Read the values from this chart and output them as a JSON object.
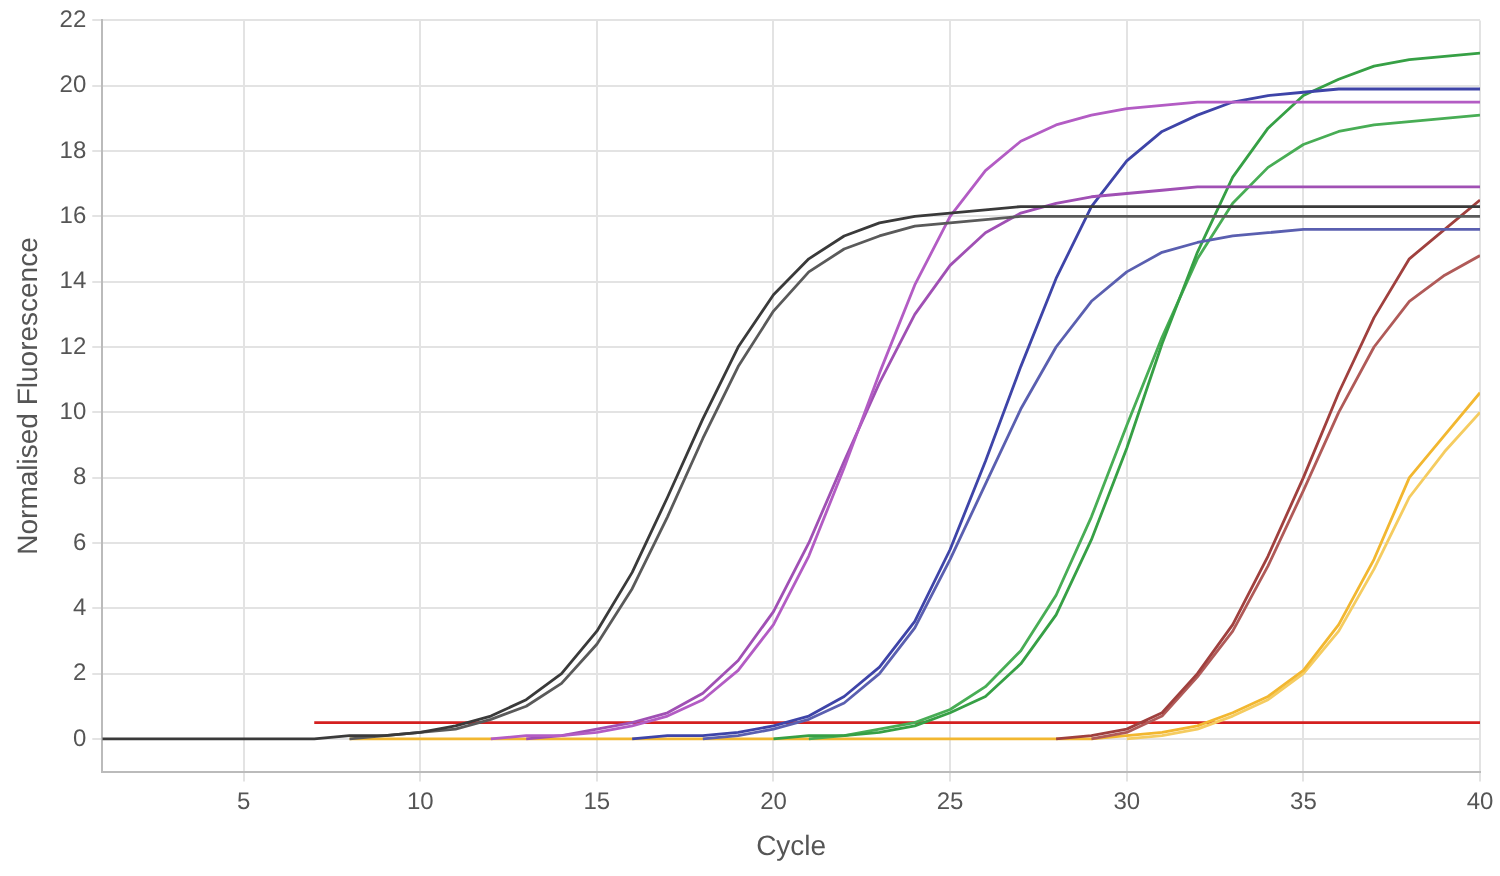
{
  "chart_data": {
    "type": "line",
    "xlabel": "Cycle",
    "ylabel": "Normalised Fluorescence",
    "x": [
      1,
      2,
      3,
      4,
      5,
      6,
      7,
      8,
      9,
      10,
      11,
      12,
      13,
      14,
      15,
      16,
      17,
      18,
      19,
      20,
      21,
      22,
      23,
      24,
      25,
      26,
      27,
      28,
      29,
      30,
      31,
      32,
      33,
      34,
      35,
      36,
      37,
      38,
      39,
      40
    ],
    "xlim": [
      1,
      40
    ],
    "xticks": [
      5,
      10,
      15,
      20,
      25,
      30,
      35,
      40
    ],
    "ylim": [
      -1,
      22
    ],
    "yticks": [
      0,
      2,
      4,
      6,
      8,
      10,
      12,
      14,
      16,
      18,
      20,
      22
    ],
    "grid": true,
    "legend": false,
    "marker": "none",
    "line_style": "solid",
    "series": [
      {
        "color": "#3a3a3a",
        "values": [
          0,
          0,
          0,
          0,
          0,
          0,
          0,
          0.1,
          0.1,
          0.2,
          0.4,
          0.7,
          1.2,
          2.0,
          3.3,
          5.1,
          7.4,
          9.8,
          12.0,
          13.6,
          14.7,
          15.4,
          15.8,
          16.0,
          16.1,
          16.2,
          16.3,
          16.3,
          16.3,
          16.3,
          16.3,
          16.3,
          16.3,
          16.3,
          16.3,
          16.3,
          16.3,
          16.3,
          16.3,
          16.3
        ]
      },
      {
        "color": "#5a5a5a",
        "values": [
          null,
          null,
          null,
          null,
          null,
          null,
          null,
          0,
          0.1,
          0.2,
          0.3,
          0.6,
          1.0,
          1.7,
          2.9,
          4.6,
          6.8,
          9.2,
          11.4,
          13.1,
          14.3,
          15.0,
          15.4,
          15.7,
          15.8,
          15.9,
          16.0,
          16.0,
          16.0,
          16.0,
          16.0,
          16.0,
          16.0,
          16.0,
          16.0,
          16.0,
          16.0,
          16.0,
          16.0,
          16.0
        ]
      },
      {
        "color": "#b35cc4",
        "values": [
          null,
          null,
          null,
          null,
          null,
          null,
          null,
          null,
          null,
          null,
          null,
          0,
          0.1,
          0.1,
          0.2,
          0.4,
          0.7,
          1.2,
          2.1,
          3.5,
          5.6,
          8.3,
          11.2,
          13.9,
          16.0,
          17.4,
          18.3,
          18.8,
          19.1,
          19.3,
          19.4,
          19.5,
          19.5,
          19.5,
          19.5,
          19.5,
          19.5,
          19.5,
          19.5,
          19.5
        ]
      },
      {
        "color": "#a050b4",
        "values": [
          null,
          null,
          null,
          null,
          null,
          null,
          null,
          null,
          null,
          null,
          null,
          null,
          0,
          0.1,
          0.3,
          0.5,
          0.8,
          1.4,
          2.4,
          3.9,
          6.0,
          8.5,
          10.9,
          13.0,
          14.5,
          15.5,
          16.1,
          16.4,
          16.6,
          16.7,
          16.8,
          16.9,
          16.9,
          16.9,
          16.9,
          16.9,
          16.9,
          16.9,
          16.9,
          16.9
        ]
      },
      {
        "color": "#3e44a8",
        "values": [
          null,
          null,
          null,
          null,
          null,
          null,
          null,
          null,
          null,
          null,
          null,
          null,
          null,
          null,
          null,
          0,
          0.1,
          0.1,
          0.2,
          0.4,
          0.7,
          1.3,
          2.2,
          3.6,
          5.8,
          8.5,
          11.4,
          14.1,
          16.3,
          17.7,
          18.6,
          19.1,
          19.5,
          19.7,
          19.8,
          19.9,
          19.9,
          19.9,
          19.9,
          19.9
        ]
      },
      {
        "color": "#5a5fb0",
        "values": [
          null,
          null,
          null,
          null,
          null,
          null,
          null,
          null,
          null,
          null,
          null,
          null,
          null,
          null,
          null,
          null,
          null,
          0,
          0.1,
          0.3,
          0.6,
          1.1,
          2.0,
          3.4,
          5.5,
          7.8,
          10.1,
          12.0,
          13.4,
          14.3,
          14.9,
          15.2,
          15.4,
          15.5,
          15.6,
          15.6,
          15.6,
          15.6,
          15.6,
          15.6
        ]
      },
      {
        "color": "#36a045",
        "values": [
          null,
          null,
          null,
          null,
          null,
          null,
          null,
          null,
          null,
          null,
          null,
          null,
          null,
          null,
          null,
          null,
          null,
          null,
          null,
          0,
          0.1,
          0.1,
          0.2,
          0.4,
          0.8,
          1.3,
          2.3,
          3.8,
          6.1,
          8.9,
          12.1,
          14.9,
          17.2,
          18.7,
          19.7,
          20.2,
          20.6,
          20.8,
          20.9,
          21.0
        ]
      },
      {
        "color": "#48ad55",
        "values": [
          null,
          null,
          null,
          null,
          null,
          null,
          null,
          null,
          null,
          null,
          null,
          null,
          null,
          null,
          null,
          null,
          null,
          null,
          null,
          null,
          0,
          0.1,
          0.3,
          0.5,
          0.9,
          1.6,
          2.7,
          4.4,
          6.8,
          9.6,
          12.3,
          14.7,
          16.4,
          17.5,
          18.2,
          18.6,
          18.8,
          18.9,
          19.0,
          19.1
        ]
      },
      {
        "color": "#a0403e",
        "values": [
          null,
          null,
          null,
          null,
          null,
          null,
          null,
          null,
          null,
          null,
          null,
          null,
          null,
          null,
          null,
          null,
          null,
          null,
          null,
          null,
          null,
          null,
          null,
          null,
          null,
          null,
          null,
          0,
          0.1,
          0.3,
          0.8,
          2.0,
          3.5,
          5.6,
          8.0,
          10.6,
          12.9,
          14.7,
          15.6,
          16.5
        ]
      },
      {
        "color": "#b05a58",
        "values": [
          null,
          null,
          null,
          null,
          null,
          null,
          null,
          null,
          null,
          null,
          null,
          null,
          null,
          null,
          null,
          null,
          null,
          null,
          null,
          null,
          null,
          null,
          null,
          null,
          null,
          null,
          null,
          null,
          0,
          0.2,
          0.7,
          1.9,
          3.3,
          5.3,
          7.6,
          10.0,
          12.0,
          13.4,
          14.2,
          14.8
        ]
      },
      {
        "color": "#f2b730",
        "values": [
          null,
          null,
          null,
          null,
          null,
          null,
          null,
          0,
          0,
          0,
          0,
          0,
          0,
          0,
          0,
          0,
          0,
          0,
          0,
          0,
          0,
          0,
          0,
          0,
          0,
          0,
          0,
          0,
          0,
          0.1,
          0.2,
          0.4,
          0.8,
          1.3,
          2.1,
          3.5,
          5.5,
          8.0,
          9.3,
          10.6
        ]
      },
      {
        "color": "#f5cc60",
        "values": [
          null,
          null,
          null,
          null,
          null,
          null,
          null,
          null,
          null,
          null,
          null,
          null,
          null,
          null,
          null,
          null,
          null,
          null,
          null,
          null,
          null,
          null,
          null,
          null,
          null,
          null,
          null,
          null,
          null,
          0,
          0.1,
          0.3,
          0.7,
          1.2,
          2.0,
          3.3,
          5.2,
          7.4,
          8.8,
          10.0
        ]
      },
      {
        "type": "line",
        "color": "#d42020",
        "x": [
          7,
          40
        ],
        "values": [
          0.5,
          0.5
        ]
      }
    ]
  }
}
